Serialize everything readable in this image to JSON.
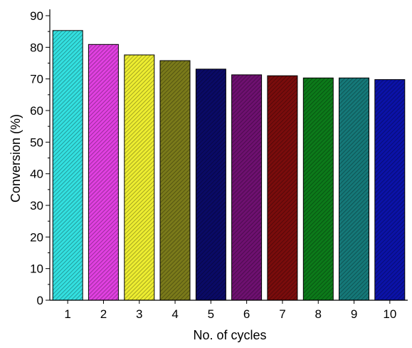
{
  "chart_data": {
    "type": "bar",
    "title": "",
    "xlabel": "No. of cycles",
    "ylabel": "Conversion (%)",
    "categories": [
      "1",
      "2",
      "3",
      "4",
      "5",
      "6",
      "7",
      "8",
      "9",
      "10"
    ],
    "values": [
      85.3,
      80.9,
      77.6,
      75.8,
      73.1,
      71.3,
      71.0,
      70.3,
      70.3,
      69.8
    ],
    "ylim": [
      0,
      92
    ],
    "yticks": [
      "0",
      "10",
      "20",
      "30",
      "40",
      "50",
      "60",
      "70",
      "80",
      "90"
    ],
    "bar_colors": [
      "#33e0e0",
      "#e040e0",
      "#eded30",
      "#7a7a1a",
      "#0a0a66",
      "#6e1070",
      "#7a0c0c",
      "#0c7a1a",
      "#157878",
      "#0b12a8"
    ],
    "pattern": "diagonal-hatch",
    "grid": false,
    "legend": "none"
  }
}
